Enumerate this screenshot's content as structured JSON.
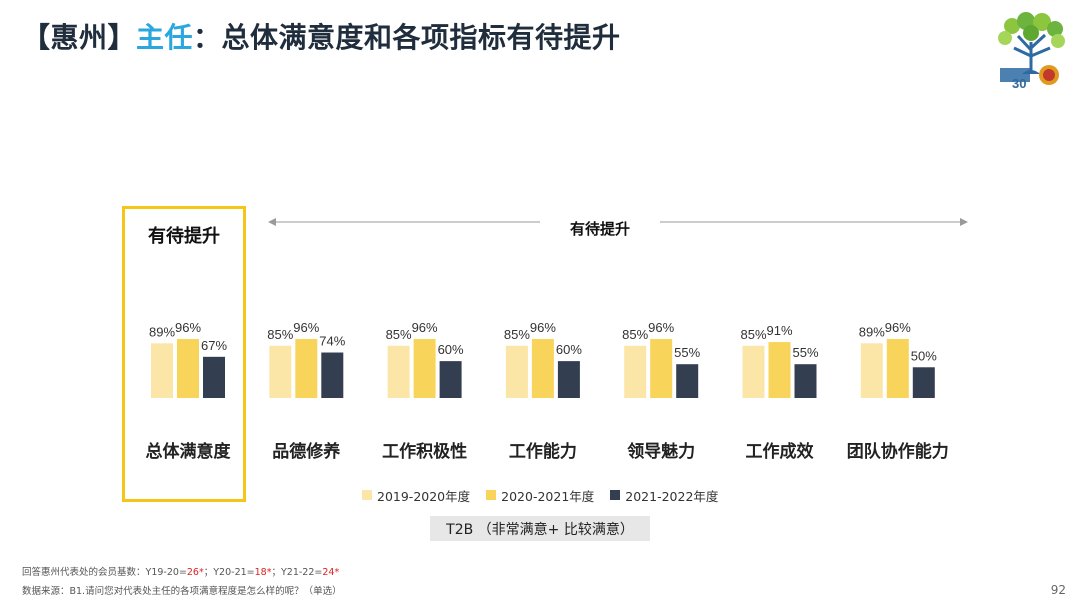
{
  "title": {
    "region": "【惠州】",
    "role": "主任",
    "rest": "：总体满意度和各项指标有待提升"
  },
  "highlight_label": "有待提升",
  "arrow_label": "有待提升",
  "colors": {
    "series_2019": "#fbe6a7",
    "series_2020": "#f9d45b",
    "series_2021": "#333f50",
    "highlight": "#f5c518",
    "title_accent": "#2aa7df"
  },
  "chart_data": {
    "type": "bar",
    "categories": [
      "总体满意度",
      "品德修养",
      "工作积极性",
      "工作能力",
      "领导魅力",
      "工作成效",
      "团队协作能力"
    ],
    "series": [
      {
        "name": "2019-2020年度",
        "values": [
          89,
          85,
          85,
          85,
          85,
          85,
          89
        ]
      },
      {
        "name": "2020-2021年度",
        "values": [
          96,
          96,
          96,
          96,
          96,
          91,
          96
        ]
      },
      {
        "name": "2021-2022年度",
        "values": [
          67,
          74,
          60,
          60,
          55,
          55,
          50
        ]
      }
    ],
    "value_suffix": "%",
    "ylim": [
      0,
      100
    ],
    "grid": false,
    "legend_position": "bottom"
  },
  "legend": [
    "2019-2020年度",
    "2020-2021年度",
    "2021-2022年度"
  ],
  "t2b_label": "T2B （非常满意+ 比较满意）",
  "footnote": {
    "line1_prefix": "回答惠州代表处的会员基数：",
    "y1_label": "Y19-20=",
    "y1_value": "26*",
    "y2_label": "Y20-21=",
    "y2_value": "18*",
    "y3_label": "Y21-22=",
    "y3_value": "24*",
    "sep": "；",
    "line2": "数据来源：B1.请问您对代表处主任的各项满意程度是怎么样的呢？（单选）"
  },
  "page_number": "92"
}
